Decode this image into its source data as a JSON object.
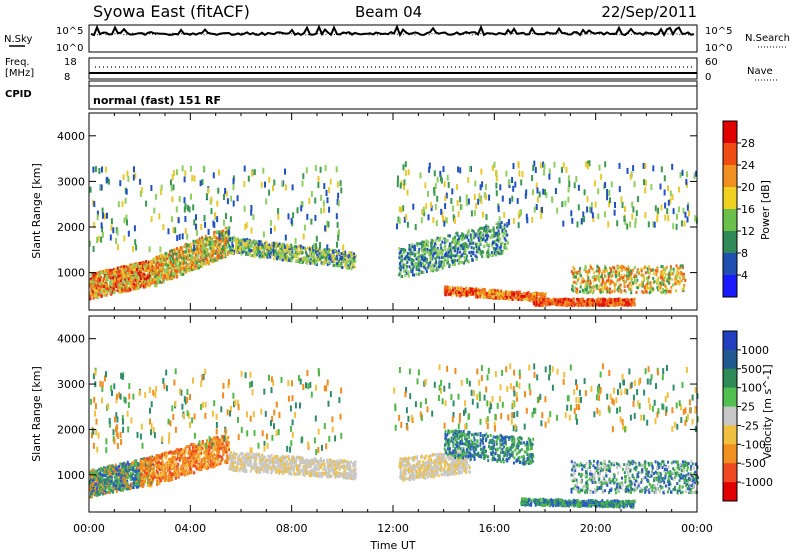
{
  "header": {
    "station": "Syowa East (fitACF)",
    "beam": "Beam 04",
    "date": "22/Sep/2011"
  },
  "top_panels": {
    "nsky_label": "N.Sky",
    "nsky_ticks": [
      "10^5",
      "10^0"
    ],
    "nsearch_label": "N.Search",
    "nsearch_ticks": [
      "10^5",
      "10^0"
    ],
    "freq_label_line1": "Freq.",
    "freq_label_line2": "[MHz]",
    "freq_ticks": [
      "18",
      "8"
    ],
    "nave_label": "Nave",
    "nave_ticks": [
      "60",
      "0"
    ],
    "cpid_label": "CPID",
    "cpid_value": "normal (fast) 151 RF"
  },
  "chart_data": [
    {
      "type": "heatmap",
      "name": "power",
      "ylabel": "Slant Range [km]",
      "yticks": [
        "1000",
        "2000",
        "3000",
        "4000"
      ],
      "ylim": [
        180,
        4500
      ],
      "xlim": [
        0,
        24
      ],
      "colorbar_label": "Power [dB]",
      "colorbar_ticks": [
        "4",
        "8",
        "12",
        "16",
        "20",
        "24",
        "28"
      ],
      "colorbar_colors": [
        "#1a1aff",
        "#1f4fb0",
        "#2e8b57",
        "#6ac04a",
        "#f0d020",
        "#f09020",
        "#f04d14",
        "#e00000"
      ],
      "colors": {
        "p_lo": "#2050c0",
        "p_mid": "#3a9a50",
        "p_lt": "#8ed060",
        "p_yel": "#e8c830",
        "p_or": "#f09020",
        "p_ro": "#f05a14",
        "p_red": "#e01010"
      }
    },
    {
      "type": "heatmap",
      "name": "velocity",
      "ylabel": "Slant Range [km]",
      "yticks": [
        "1000",
        "2000",
        "3000",
        "4000"
      ],
      "ylim": [
        180,
        4500
      ],
      "xlim": [
        0,
        24
      ],
      "xlabel": "Time UT",
      "xticks": [
        "00:00",
        "04:00",
        "08:00",
        "12:00",
        "16:00",
        "20:00",
        "00:00"
      ],
      "colorbar_label": "Velocity [m s^-1]",
      "colorbar_ticks": [
        "1000",
        "500",
        "100",
        "25",
        "-25",
        "-100",
        "-500",
        "-1000"
      ],
      "colorbar_colors": [
        "#2040c0",
        "#205890",
        "#2e8b57",
        "#50c050",
        "#c8c8c8",
        "#f0c040",
        "#f09020",
        "#f04820",
        "#e00000"
      ],
      "colors": {
        "v_blue": "#2a58c8",
        "v_teal": "#2e8b6e",
        "v_green": "#50b848",
        "v_grey": "#c8c8c8",
        "v_yel": "#f0c040",
        "v_or": "#f08c20",
        "v_red": "#f04820"
      }
    }
  ]
}
